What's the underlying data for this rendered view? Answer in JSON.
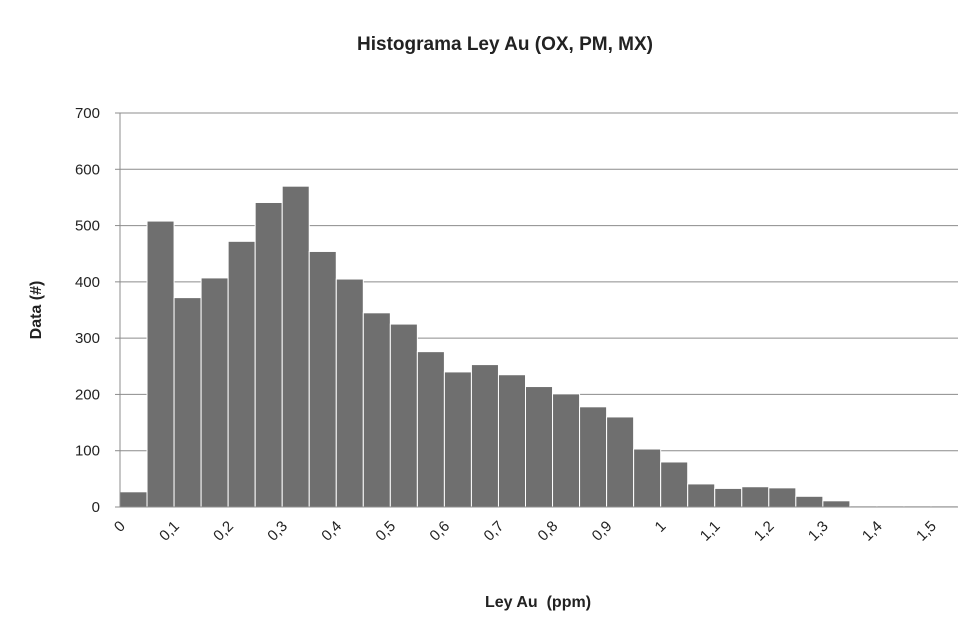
{
  "chart_data": {
    "type": "bar",
    "title": "Histograma Ley Au (OX, PM, MX)",
    "xlabel": "Ley Au  (ppm)",
    "ylabel": "Data (#)",
    "ylim": [
      0,
      700
    ],
    "yticks": [
      "0",
      "100",
      "200",
      "300",
      "400",
      "500",
      "600",
      "700"
    ],
    "xticks": [
      "0",
      "0,1",
      "0,2",
      "0,3",
      "0,4",
      "0,5",
      "0,6",
      "0,7",
      "0,8",
      "0,9",
      "1",
      "1,1",
      "1,2",
      "1,3",
      "1,4",
      "1,5"
    ],
    "xrange": [
      0,
      1.5
    ],
    "bin_width": 0.05,
    "grid": true,
    "legend": "none",
    "bar_color": "#6f6f6f",
    "values": [
      27,
      508,
      372,
      407,
      472,
      541,
      570,
      454,
      405,
      345,
      325,
      276,
      240,
      253,
      235,
      214,
      201,
      178,
      160,
      103,
      80,
      41,
      33,
      36,
      34,
      19,
      11,
      2,
      2,
      2,
      2
    ]
  }
}
